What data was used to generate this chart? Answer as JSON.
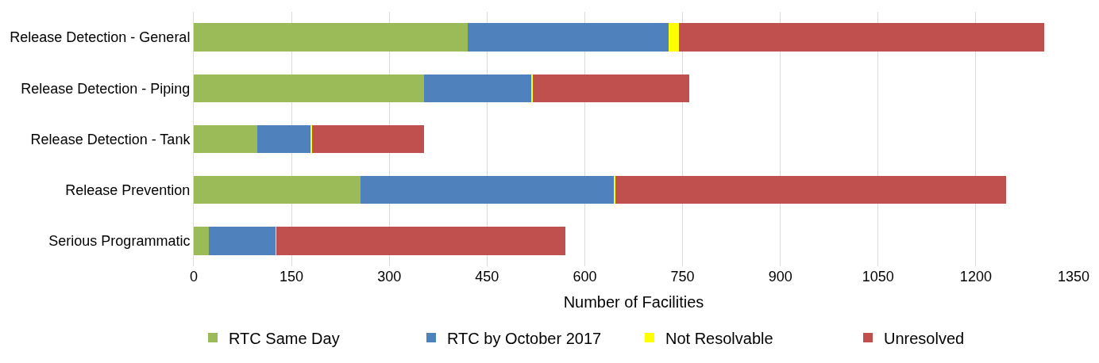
{
  "chart_data": {
    "type": "bar",
    "orientation": "horizontal",
    "stacked": true,
    "categories": [
      "Release Detection - General",
      "Release Detection - Piping",
      "Release Detection - Tank",
      "Release Prevention",
      "Serious Programmatic"
    ],
    "series": [
      {
        "name": "RTC Same Day",
        "color": "#9bbb59",
        "values": [
          420,
          353,
          98,
          256,
          23
        ]
      },
      {
        "name": "RTC by October 2017",
        "color": "#4f81bd",
        "values": [
          309,
          165,
          82,
          388,
          103
        ]
      },
      {
        "name": "Not Resolvable",
        "color": "#ffff00",
        "values": [
          16,
          2,
          2,
          3,
          1
        ]
      },
      {
        "name": "Unresolved",
        "color": "#c0504d",
        "values": [
          560,
          240,
          171,
          599,
          443
        ]
      }
    ],
    "xlabel": "Number of Facilities",
    "xlim": [
      0,
      1350
    ],
    "xticks": [
      0,
      150,
      300,
      450,
      600,
      750,
      900,
      1050,
      1200,
      1350
    ],
    "grid": "x",
    "legend": "bottom"
  }
}
